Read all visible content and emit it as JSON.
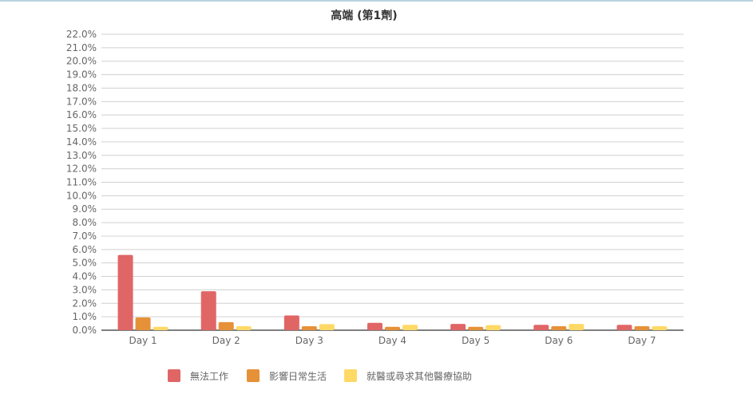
{
  "chart_data": {
    "type": "bar",
    "title": "高端 (第1劑)",
    "categories": [
      "Day 1",
      "Day 2",
      "Day 3",
      "Day 4",
      "Day 5",
      "Day 6",
      "Day 7"
    ],
    "series": [
      {
        "name": "無法工作",
        "color": "#e06666",
        "values": [
          5.6,
          2.9,
          1.1,
          0.55,
          0.47,
          0.4,
          0.4
        ]
      },
      {
        "name": "影響日常生活",
        "color": "#e69138",
        "values": [
          0.95,
          0.6,
          0.3,
          0.25,
          0.25,
          0.3,
          0.3
        ]
      },
      {
        "name": "就醫或尋求其他醫療協助",
        "color": "#ffd966",
        "values": [
          0.25,
          0.3,
          0.45,
          0.4,
          0.38,
          0.47,
          0.3
        ]
      }
    ],
    "ylim": [
      0,
      22
    ],
    "ytick_step": 1,
    "ytick_format": "percent-1-decimal",
    "grid": true,
    "legend": "bottom"
  }
}
